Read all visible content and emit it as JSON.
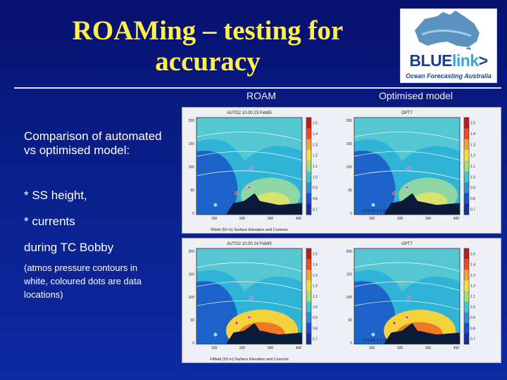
{
  "slide": {
    "title_line1": "ROAMing – testing for",
    "title_line2": "accuracy"
  },
  "logo": {
    "word_blue": "BLUE",
    "word_link": "link",
    "word_arrow": ">",
    "tagline": "Ocean Forecasting Australia"
  },
  "columns": {
    "left": "ROAM",
    "right": "Optimised model"
  },
  "body_text": {
    "heading": "Comparison of automated vs optimised model:",
    "bullet1": "* SS height,",
    "bullet2": "* currents",
    "event": "during TC Bobby",
    "note": "(atmos pressure contours in white, coloured dots are data locations)"
  },
  "panels": [
    {
      "left_title": "AUTO2 10.00 23 Feb95",
      "right_title": "OPT7",
      "y_ticks": [
        "200",
        "150",
        "100",
        "50",
        "0"
      ],
      "x_ticks": [
        "100",
        "200",
        "300",
        "400"
      ],
      "colorbar_left": [
        "1.5",
        "1.4",
        "1.3",
        "1.2",
        "1.1",
        "1.0",
        "0.9",
        "0.8",
        "0.7"
      ],
      "colorbar_right": [
        "1.5",
        "1.4",
        "1.3",
        "1.2",
        "1.1",
        "1.0",
        "0.9",
        "0.8",
        "0.7"
      ],
      "xlabel": "Rfield (50 m) Surface Elevation and Currents",
      "legend": "< 0.5 m/s  > 1 m/s  > 1.5 m/s"
    },
    {
      "left_title": "AUTO2 10.00 24 Feb95",
      "right_title": "OPT7",
      "y_ticks": [
        "200",
        "150",
        "100",
        "50",
        "0"
      ],
      "x_ticks": [
        "100",
        "200",
        "300",
        "400"
      ],
      "colorbar_left": [
        "1.5",
        "1.4",
        "1.3",
        "1.2",
        "1.1",
        "1.0",
        "0.9",
        "0.8",
        "0.7"
      ],
      "colorbar_right": [
        "1.5",
        "1.4",
        "1.3",
        "1.2",
        "1.1",
        "1.0",
        "0.9",
        "0.8",
        "0.7"
      ],
      "xlabel": "Fitfield (50 m) Surface Elevation and Currents",
      "legend": "< 0.5 m/s  > 1 m/s  > 1.5 m/s"
    }
  ]
}
